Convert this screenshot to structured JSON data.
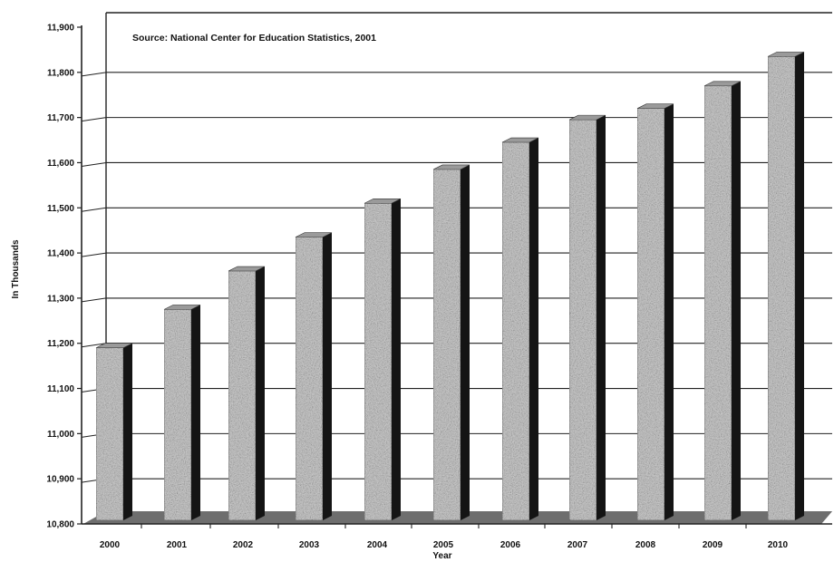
{
  "chart_data": {
    "type": "bar",
    "categories": [
      "2000",
      "2001",
      "2002",
      "2003",
      "2004",
      "2005",
      "2006",
      "2007",
      "2008",
      "2009",
      "2010"
    ],
    "values": [
      11190,
      11275,
      11360,
      11435,
      11510,
      11585,
      11645,
      11695,
      11720,
      11770,
      11835
    ],
    "annotation": "Source: National Center for Education Statistics, 2001",
    "xlabel": "Year",
    "ylabel": "In Thousands",
    "ylim": [
      10800,
      11900
    ],
    "yticks": [
      10800,
      10900,
      11000,
      11100,
      11200,
      11300,
      11400,
      11500,
      11600,
      11700,
      11800,
      11900
    ],
    "ytick_labels": [
      "10,800",
      "10,900",
      "11,000",
      "11,100",
      "11,200",
      "11,300",
      "11,400",
      "11,500",
      "11,600",
      "11,700",
      "11,800",
      "11,900"
    ],
    "grid": true,
    "style": "3d",
    "colors": {
      "bar_face": "#cfcfcf",
      "bar_side": "#141414",
      "bar_top": "#9a9a9a",
      "floor": "#6e6e6e",
      "grid": "#222222"
    }
  }
}
